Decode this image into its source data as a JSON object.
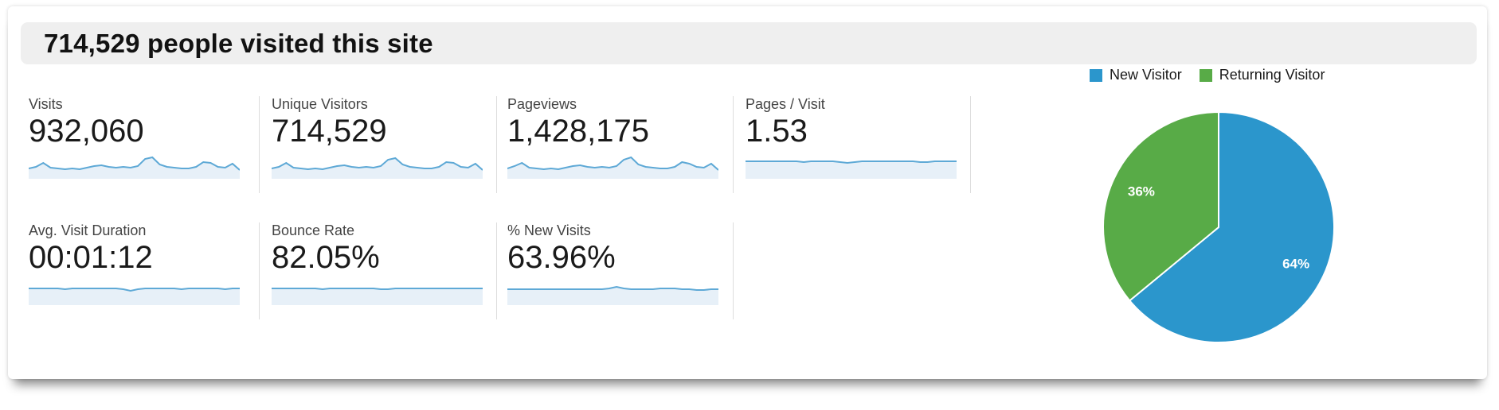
{
  "header": {
    "title": "714,529 people visited this site"
  },
  "metrics": {
    "row1": [
      {
        "label": "Visits",
        "value": "932,060"
      },
      {
        "label": "Unique Visitors",
        "value": "714,529"
      },
      {
        "label": "Pageviews",
        "value": "1,428,175"
      },
      {
        "label": "Pages / Visit",
        "value": "1.53"
      }
    ],
    "row2": [
      {
        "label": "Avg. Visit Duration",
        "value": "00:01:12"
      },
      {
        "label": "Bounce Rate",
        "value": "82.05%"
      },
      {
        "label": "% New Visits",
        "value": "63.96%"
      }
    ]
  },
  "legend": {
    "items": [
      {
        "label": "New Visitor"
      },
      {
        "label": "Returning Visitor"
      }
    ]
  },
  "colors": {
    "header_bg": "#efefef",
    "divider": "#dddddd",
    "spark_line": "#5ea9d6",
    "spark_fill": "#e7f0f8",
    "pie_blue": "#2b96cc",
    "pie_green": "#58ab47"
  },
  "chart_data": [
    {
      "type": "pie",
      "title": "New vs Returning Visitors",
      "labels": [
        "New Visitor",
        "Returning Visitor"
      ],
      "values": [
        64,
        36
      ],
      "slice_labels": [
        "64%",
        "36%"
      ],
      "colors": [
        "#2b96cc",
        "#58ab47"
      ],
      "start_angle_deg": 0,
      "direction": "clockwise",
      "legend_position": "top-right"
    },
    {
      "type": "line",
      "subtype": "sparklines",
      "note": "Unlabeled trend sparklines below each metric; relative heights only (no axes shown).",
      "series": [
        {
          "name": "Visits",
          "values": [
            13,
            15,
            20,
            14,
            13,
            12,
            13,
            12,
            14,
            16,
            17,
            15,
            14,
            15,
            14,
            16,
            25,
            27,
            18,
            15,
            14,
            13,
            13,
            15,
            21,
            20,
            15,
            14,
            19,
            11
          ]
        },
        {
          "name": "Unique Visitors",
          "values": [
            13,
            15,
            20,
            14,
            13,
            12,
            13,
            12,
            14,
            16,
            17,
            15,
            14,
            15,
            14,
            16,
            24,
            26,
            18,
            15,
            14,
            13,
            13,
            15,
            21,
            20,
            15,
            14,
            19,
            11
          ]
        },
        {
          "name": "Pageviews",
          "values": [
            13,
            16,
            20,
            14,
            13,
            12,
            13,
            12,
            14,
            16,
            17,
            15,
            14,
            15,
            14,
            16,
            24,
            27,
            18,
            15,
            14,
            13,
            13,
            15,
            21,
            19,
            15,
            14,
            19,
            11
          ]
        },
        {
          "name": "Pages / Visit",
          "values": [
            22,
            22,
            22,
            22,
            22,
            22,
            22,
            22,
            21,
            22,
            22,
            22,
            22,
            21,
            20,
            21,
            22,
            22,
            22,
            22,
            22,
            22,
            22,
            22,
            21,
            21,
            22,
            22,
            22,
            22
          ]
        },
        {
          "name": "Avg. Visit Duration",
          "values": [
            21,
            21,
            21,
            21,
            21,
            20,
            21,
            21,
            21,
            21,
            21,
            21,
            21,
            20,
            18,
            20,
            21,
            21,
            21,
            21,
            21,
            20,
            21,
            21,
            21,
            21,
            21,
            20,
            21,
            21
          ]
        },
        {
          "name": "Bounce Rate",
          "values": [
            21,
            21,
            21,
            21,
            21,
            21,
            21,
            20,
            21,
            21,
            21,
            21,
            21,
            21,
            21,
            20,
            20,
            21,
            21,
            21,
            21,
            21,
            21,
            21,
            21,
            21,
            21,
            21,
            21,
            21
          ]
        },
        {
          "name": "% New Visits",
          "values": [
            20,
            20,
            20,
            20,
            20,
            20,
            20,
            20,
            20,
            20,
            20,
            20,
            20,
            20,
            21,
            23,
            21,
            20,
            20,
            20,
            20,
            21,
            21,
            21,
            20,
            20,
            19,
            19,
            20,
            20
          ]
        }
      ]
    }
  ]
}
